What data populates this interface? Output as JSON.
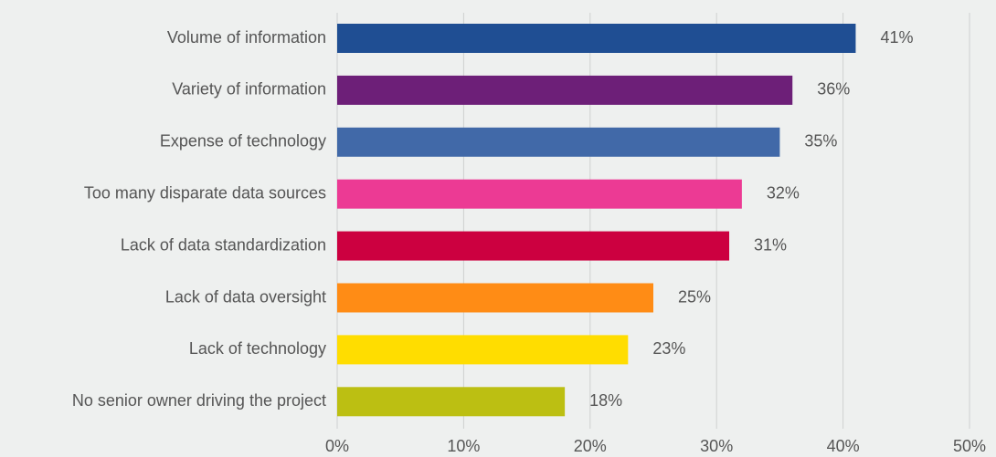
{
  "chart_data": {
    "type": "bar",
    "orientation": "horizontal",
    "categories": [
      "Volume of information",
      "Variety of information",
      "Expense of technology",
      "Too many disparate data sources",
      "Lack of data standardization",
      "Lack of data oversight",
      "Lack of technology",
      "No senior owner driving the project"
    ],
    "values": [
      41,
      36,
      35,
      32,
      31,
      25,
      23,
      18
    ],
    "value_labels": [
      "41%",
      "36%",
      "35%",
      "32%",
      "31%",
      "25%",
      "23%",
      "18%"
    ],
    "colors": [
      "#1f4e93",
      "#6d1f78",
      "#4169a8",
      "#ec3a94",
      "#cc0040",
      "#ff8c15",
      "#ffdd00",
      "#bcbf12"
    ],
    "xlim": [
      0,
      50
    ],
    "xticks": [
      {
        "value": 0,
        "label": "0%"
      },
      {
        "value": 10,
        "label": "10%"
      },
      {
        "value": 20,
        "label": "20%"
      },
      {
        "value": 30,
        "label": "30%"
      },
      {
        "value": 40,
        "label": "40%"
      },
      {
        "value": 50,
        "label": "50%"
      }
    ],
    "grid": true
  }
}
